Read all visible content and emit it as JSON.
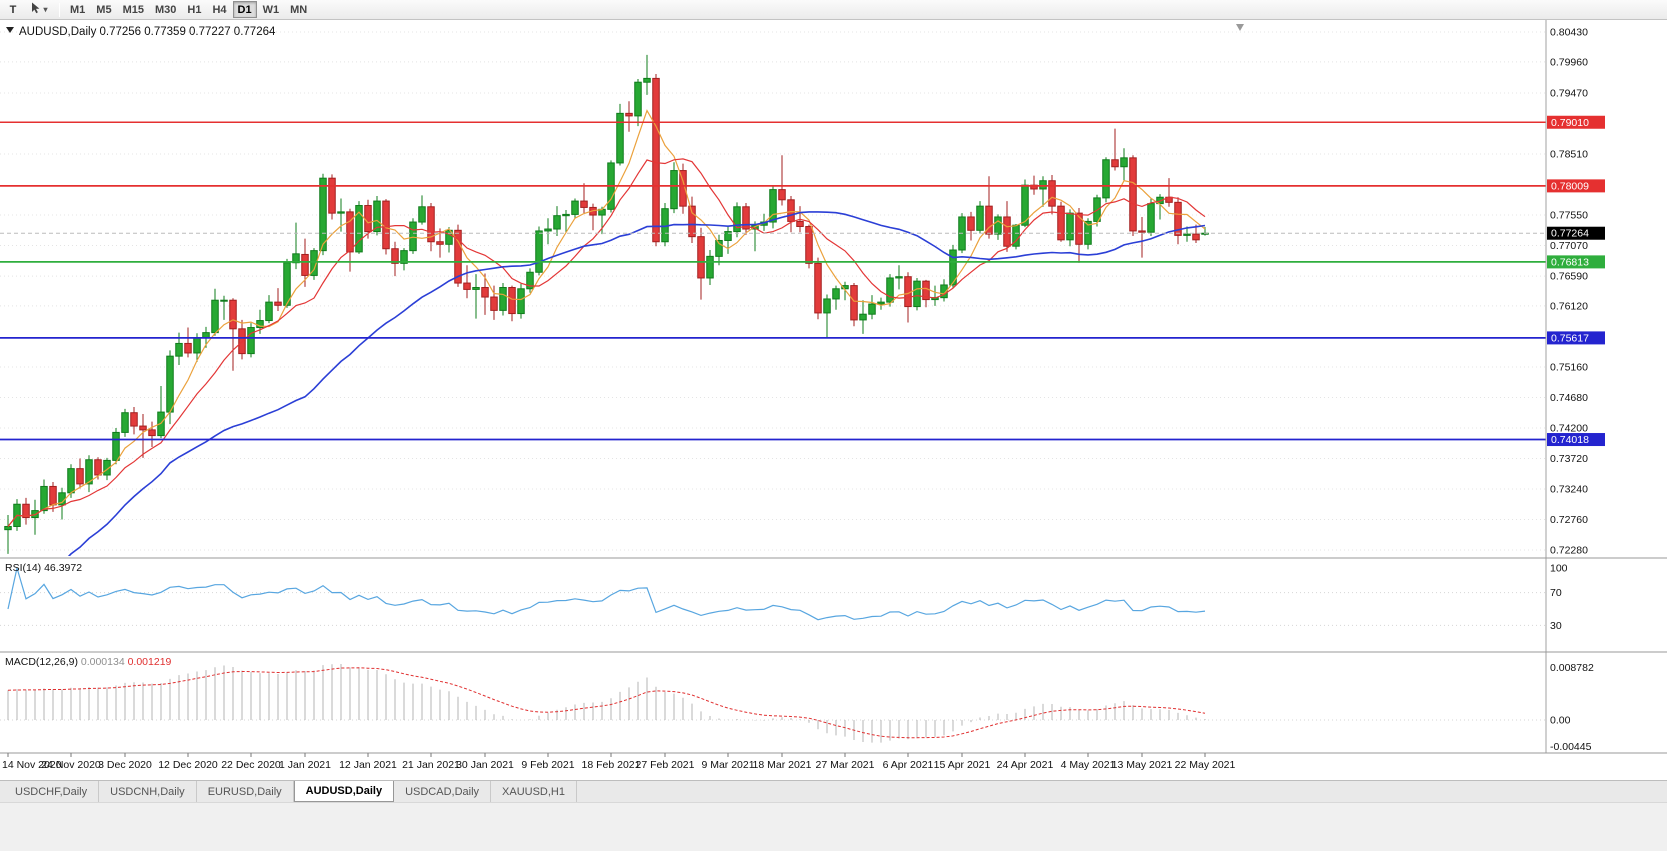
{
  "toolbar": {
    "t_label": "T",
    "timeframes": [
      "M1",
      "M5",
      "M15",
      "M30",
      "H1",
      "H4",
      "D1",
      "W1",
      "MN"
    ],
    "active_timeframe": "D1"
  },
  "tabs": {
    "items": [
      "USDCHF,Daily",
      "USDCNH,Daily",
      "EURUSD,Daily",
      "AUDUSD,Daily",
      "USDCAD,Daily",
      "XAUUSD,H1"
    ],
    "active": "AUDUSD,Daily"
  },
  "colors": {
    "up": "#27a833",
    "up_border": "#0f7c1b",
    "down": "#e23b3b",
    "down_border": "#a31f1f",
    "grid": "#e4e4e4",
    "axis_text": "#111111"
  },
  "chart_data": {
    "type": "candlestick",
    "symbol": "AUDUSD",
    "timeframe": "Daily",
    "symbol_title": "AUDUSD,Daily",
    "ohlc_label": "0.77256 0.77359 0.77227 0.77264",
    "last_ohlc": {
      "open": 0.77256,
      "high": 0.77359,
      "low": 0.77227,
      "close": 0.77264
    },
    "y_range": [
      0.7228,
      0.8043
    ],
    "y_axis_ticks": [
      "0.80430",
      "0.79960",
      "0.79470",
      "0.78510",
      "0.77550",
      "0.77070",
      "0.76590",
      "0.76120",
      "0.75160",
      "0.74680",
      "0.74200",
      "0.73720",
      "0.73240",
      "0.72760",
      "0.72280"
    ],
    "x_labels": [
      "14 Nov 2020",
      "24 Nov 2020",
      "3 Dec 2020",
      "12 Dec 2020",
      "22 Dec 2020",
      "1 Jan 2021",
      "12 Jan 2021",
      "21 Jan 2021",
      "30 Jan 2021",
      "9 Feb 2021",
      "18 Feb 2021",
      "27 Feb 2021",
      "9 Mar 2021",
      "18 Mar 2021",
      "27 Mar 2021",
      "6 Apr 2021",
      "15 Apr 2021",
      "24 Apr 2021",
      "4 May 2021",
      "13 May 2021",
      "22 May 2021"
    ],
    "levels": [
      {
        "price": 0.7901,
        "label": "0.79010",
        "color": "#e53030",
        "width": 1.4
      },
      {
        "price": 0.78009,
        "label": "0.78009",
        "color": "#e53030",
        "width": 1.8
      },
      {
        "price": 0.76813,
        "label": "0.76813",
        "color": "#2fae3d",
        "width": 1.8
      },
      {
        "price": 0.75617,
        "label": "0.75617",
        "color": "#2424cf",
        "width": 1.8
      },
      {
        "price": 0.74018,
        "label": "0.74018",
        "color": "#2424cf",
        "width": 1.8
      }
    ],
    "current_price": {
      "price": 0.77264,
      "label": "0.77264",
      "box_color": "#000000"
    },
    "moving_averages": [
      {
        "period": 5,
        "color": "#eba13c"
      },
      {
        "period": 10,
        "color": "#e33636"
      },
      {
        "period": 34,
        "color": "#2b3fd6"
      }
    ],
    "rsi": {
      "label": "RSI(14)",
      "value": "46.3972",
      "period": 14,
      "axis_labels": [
        "100",
        "70",
        "30"
      ],
      "levels": [
        70,
        30
      ],
      "color": "#58a6e0"
    },
    "macd": {
      "label": "MACD(12,26,9)",
      "fast": 12,
      "slow": 26,
      "signal": 9,
      "main_value": "0.000134",
      "signal_value": "0.001219",
      "axis_top_label": "0.008782",
      "axis_zero_label": "0.00",
      "axis_bottom_label": "-0.00445",
      "hist_color": "#b4b4b4",
      "signal_color": "#e03030"
    },
    "candles": [
      [
        0.726,
        0.7283,
        0.7222,
        0.7265
      ],
      [
        0.7265,
        0.7308,
        0.7258,
        0.73
      ],
      [
        0.73,
        0.731,
        0.7268,
        0.7279
      ],
      [
        0.7279,
        0.7307,
        0.7252,
        0.729
      ],
      [
        0.729,
        0.7339,
        0.7285,
        0.7328
      ],
      [
        0.7328,
        0.7335,
        0.7288,
        0.7299
      ],
      [
        0.7299,
        0.7326,
        0.7276,
        0.7318
      ],
      [
        0.7318,
        0.7363,
        0.731,
        0.7356
      ],
      [
        0.7356,
        0.7372,
        0.7325,
        0.7332
      ],
      [
        0.7332,
        0.7377,
        0.7319,
        0.737
      ],
      [
        0.737,
        0.7374,
        0.7339,
        0.7346
      ],
      [
        0.7346,
        0.7373,
        0.7338,
        0.7369
      ],
      [
        0.7369,
        0.742,
        0.7363,
        0.7413
      ],
      [
        0.7413,
        0.745,
        0.7406,
        0.7444
      ],
      [
        0.7444,
        0.7453,
        0.741,
        0.7423
      ],
      [
        0.7423,
        0.7442,
        0.7373,
        0.7417
      ],
      [
        0.7417,
        0.743,
        0.739,
        0.7408
      ],
      [
        0.7408,
        0.7486,
        0.7404,
        0.7445
      ],
      [
        0.7445,
        0.7542,
        0.7426,
        0.7533
      ],
      [
        0.7533,
        0.757,
        0.7519,
        0.7553
      ],
      [
        0.7553,
        0.7578,
        0.7531,
        0.7538
      ],
      [
        0.7538,
        0.7569,
        0.7524,
        0.7562
      ],
      [
        0.7562,
        0.7579,
        0.7546,
        0.757
      ],
      [
        0.757,
        0.7639,
        0.7565,
        0.7621
      ],
      [
        0.7621,
        0.7628,
        0.759,
        0.7621
      ],
      [
        0.7621,
        0.7624,
        0.751,
        0.7576
      ],
      [
        0.7576,
        0.759,
        0.7528,
        0.7537
      ],
      [
        0.7537,
        0.7585,
        0.7531,
        0.7578
      ],
      [
        0.7578,
        0.7606,
        0.7568,
        0.7589
      ],
      [
        0.7589,
        0.7629,
        0.7585,
        0.7618
      ],
      [
        0.7618,
        0.764,
        0.7604,
        0.7613
      ],
      [
        0.7613,
        0.7686,
        0.7609,
        0.768
      ],
      [
        0.768,
        0.7743,
        0.767,
        0.7694
      ],
      [
        0.7693,
        0.7718,
        0.7642,
        0.766
      ],
      [
        0.766,
        0.7703,
        0.7653,
        0.7699
      ],
      [
        0.7699,
        0.782,
        0.7692,
        0.7813
      ],
      [
        0.7813,
        0.7819,
        0.7748,
        0.7758
      ],
      [
        0.7758,
        0.7781,
        0.7729,
        0.776
      ],
      [
        0.776,
        0.7765,
        0.7666,
        0.7697
      ],
      [
        0.7697,
        0.7777,
        0.7694,
        0.777
      ],
      [
        0.777,
        0.7779,
        0.7718,
        0.7729
      ],
      [
        0.7729,
        0.7785,
        0.7723,
        0.7777
      ],
      [
        0.7777,
        0.778,
        0.7693,
        0.7702
      ],
      [
        0.7702,
        0.7713,
        0.7659,
        0.7679
      ],
      [
        0.7679,
        0.7703,
        0.7668,
        0.7699
      ],
      [
        0.7699,
        0.775,
        0.7694,
        0.7744
      ],
      [
        0.7744,
        0.7786,
        0.774,
        0.7768
      ],
      [
        0.7768,
        0.7774,
        0.7698,
        0.7713
      ],
      [
        0.7713,
        0.7734,
        0.7688,
        0.7709
      ],
      [
        0.7709,
        0.7736,
        0.7696,
        0.7731
      ],
      [
        0.7731,
        0.774,
        0.7642,
        0.7648
      ],
      [
        0.7648,
        0.7676,
        0.7624,
        0.7638
      ],
      [
        0.7638,
        0.7662,
        0.7592,
        0.7641
      ],
      [
        0.7641,
        0.7663,
        0.7598,
        0.7626
      ],
      [
        0.7626,
        0.7644,
        0.759,
        0.7605
      ],
      [
        0.7605,
        0.7648,
        0.7597,
        0.7641
      ],
      [
        0.7641,
        0.7644,
        0.7588,
        0.76
      ],
      [
        0.76,
        0.7647,
        0.7592,
        0.7639
      ],
      [
        0.7639,
        0.7671,
        0.7633,
        0.7665
      ],
      [
        0.7665,
        0.7737,
        0.766,
        0.773
      ],
      [
        0.773,
        0.775,
        0.7709,
        0.7733
      ],
      [
        0.7733,
        0.7769,
        0.7722,
        0.7754
      ],
      [
        0.7754,
        0.7763,
        0.7727,
        0.7756
      ],
      [
        0.7756,
        0.7781,
        0.775,
        0.7777
      ],
      [
        0.7777,
        0.7805,
        0.7758,
        0.7767
      ],
      [
        0.7767,
        0.7773,
        0.7731,
        0.7755
      ],
      [
        0.7755,
        0.7768,
        0.7725,
        0.7764
      ],
      [
        0.7764,
        0.7841,
        0.7759,
        0.7837
      ],
      [
        0.7837,
        0.793,
        0.7833,
        0.7915
      ],
      [
        0.7915,
        0.7934,
        0.7886,
        0.7911
      ],
      [
        0.7911,
        0.7969,
        0.7895,
        0.7964
      ],
      [
        0.7964,
        0.8007,
        0.7944,
        0.797
      ],
      [
        0.797,
        0.7977,
        0.7706,
        0.7713
      ],
      [
        0.7713,
        0.7774,
        0.7706,
        0.7765
      ],
      [
        0.7765,
        0.7838,
        0.7758,
        0.7825
      ],
      [
        0.7825,
        0.7836,
        0.7757,
        0.7769
      ],
      [
        0.7769,
        0.7784,
        0.7711,
        0.7721
      ],
      [
        0.7721,
        0.7735,
        0.7622,
        0.7656
      ],
      [
        0.7656,
        0.77,
        0.7645,
        0.769
      ],
      [
        0.769,
        0.7724,
        0.7676,
        0.7715
      ],
      [
        0.7715,
        0.7738,
        0.7694,
        0.7729
      ],
      [
        0.7729,
        0.7775,
        0.772,
        0.7768
      ],
      [
        0.7768,
        0.7774,
        0.7724,
        0.7733
      ],
      [
        0.7733,
        0.7745,
        0.7698,
        0.7739
      ],
      [
        0.7739,
        0.7757,
        0.773,
        0.7744
      ],
      [
        0.7744,
        0.7801,
        0.7734,
        0.7795
      ],
      [
        0.7795,
        0.7849,
        0.777,
        0.7779
      ],
      [
        0.7779,
        0.7785,
        0.7728,
        0.7745
      ],
      [
        0.7745,
        0.7769,
        0.7728,
        0.7737
      ],
      [
        0.7737,
        0.774,
        0.7671,
        0.7679
      ],
      [
        0.7679,
        0.7688,
        0.7591,
        0.7601
      ],
      [
        0.7601,
        0.763,
        0.7562,
        0.7623
      ],
      [
        0.7623,
        0.7644,
        0.7606,
        0.7639
      ],
      [
        0.7639,
        0.765,
        0.7621,
        0.7644
      ],
      [
        0.7644,
        0.7648,
        0.758,
        0.759
      ],
      [
        0.759,
        0.7621,
        0.7568,
        0.7599
      ],
      [
        0.7599,
        0.7629,
        0.7591,
        0.7615
      ],
      [
        0.7615,
        0.7625,
        0.7606,
        0.7618
      ],
      [
        0.7618,
        0.7662,
        0.7611,
        0.7656
      ],
      [
        0.7656,
        0.7676,
        0.7638,
        0.7658
      ],
      [
        0.7658,
        0.7665,
        0.7586,
        0.7611
      ],
      [
        0.7611,
        0.7656,
        0.7605,
        0.7651
      ],
      [
        0.7651,
        0.7653,
        0.761,
        0.7622
      ],
      [
        0.7622,
        0.7644,
        0.7612,
        0.7625
      ],
      [
        0.7625,
        0.7654,
        0.7619,
        0.7645
      ],
      [
        0.7645,
        0.7708,
        0.764,
        0.77
      ],
      [
        0.77,
        0.7758,
        0.7695,
        0.7752
      ],
      [
        0.7752,
        0.776,
        0.7715,
        0.7731
      ],
      [
        0.7731,
        0.7777,
        0.7726,
        0.7769
      ],
      [
        0.7769,
        0.7816,
        0.7718,
        0.7725
      ],
      [
        0.7725,
        0.7756,
        0.7716,
        0.7752
      ],
      [
        0.7752,
        0.7777,
        0.7697,
        0.7706
      ],
      [
        0.7706,
        0.7741,
        0.7701,
        0.7739
      ],
      [
        0.7739,
        0.7811,
        0.7736,
        0.7802
      ],
      [
        0.7802,
        0.7817,
        0.7787,
        0.7796
      ],
      [
        0.7796,
        0.7816,
        0.7768,
        0.7809
      ],
      [
        0.7809,
        0.7818,
        0.7756,
        0.7769
      ],
      [
        0.7769,
        0.7776,
        0.7713,
        0.7716
      ],
      [
        0.7716,
        0.7764,
        0.7706,
        0.7758
      ],
      [
        0.7758,
        0.7766,
        0.768,
        0.7709
      ],
      [
        0.7709,
        0.775,
        0.7701,
        0.7745
      ],
      [
        0.7745,
        0.7787,
        0.7737,
        0.7782
      ],
      [
        0.7782,
        0.7846,
        0.7775,
        0.7842
      ],
      [
        0.7842,
        0.7891,
        0.7825,
        0.7831
      ],
      [
        0.7831,
        0.786,
        0.7809,
        0.7845
      ],
      [
        0.7845,
        0.7849,
        0.7722,
        0.773
      ],
      [
        0.773,
        0.7752,
        0.7688,
        0.7728
      ],
      [
        0.7728,
        0.7781,
        0.7722,
        0.7773
      ],
      [
        0.7773,
        0.7788,
        0.7748,
        0.7783
      ],
      [
        0.7783,
        0.7813,
        0.7768,
        0.7775
      ],
      [
        0.7775,
        0.7783,
        0.7709,
        0.7723
      ],
      [
        0.7723,
        0.7737,
        0.7713,
        0.7725
      ],
      [
        0.7725,
        0.774,
        0.7711,
        0.7716
      ],
      [
        0.77256,
        0.77359,
        0.77227,
        0.77264
      ]
    ]
  }
}
